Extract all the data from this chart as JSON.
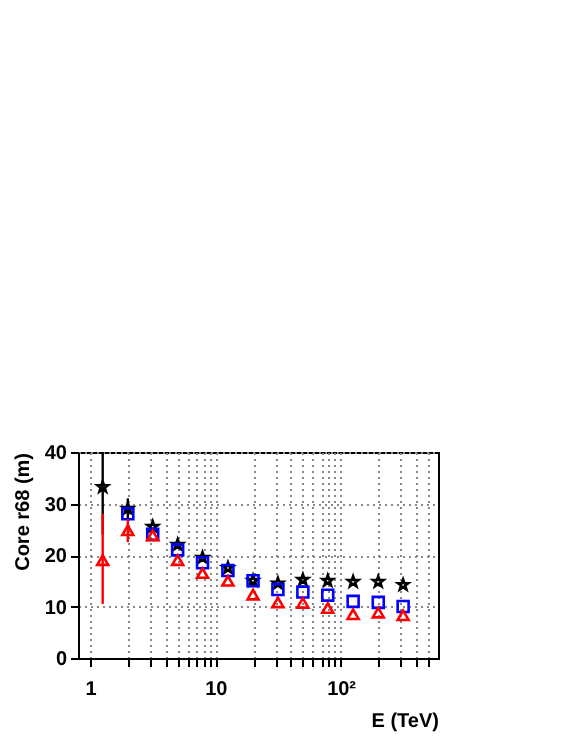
{
  "chart_data": {
    "type": "scatter",
    "xlabel": "E (TeV)",
    "ylabel": "Core r68 (m)",
    "x": [
      1.26,
      2,
      3.16,
      5,
      7.9,
      12.6,
      20,
      31.6,
      50,
      79,
      126,
      200,
      316
    ],
    "series": [
      {
        "color": "#000000",
        "marker": "star",
        "values": [
          33.2,
          29,
          25.5,
          22,
          19.5,
          17.5,
          15,
          14.5,
          15.2,
          15,
          14.8,
          14.8,
          14.2
        ],
        "errors": [
          [
            24,
            40
          ],
          [
            27,
            31
          ],
          null,
          null,
          null,
          null,
          null,
          null,
          null,
          null,
          null,
          null,
          null
        ]
      },
      {
        "color": "#0000ff",
        "marker": "square",
        "values": [
          null,
          28,
          24,
          21,
          18.5,
          17,
          15,
          13.3,
          12.8,
          12.2,
          11,
          10.8,
          10
        ]
      },
      {
        "color": "#ff0000",
        "marker": "triangle",
        "values": [
          19,
          24.8,
          23.8,
          19,
          16.5,
          15,
          12.3,
          10.8,
          10.7,
          9.7,
          8.5,
          8.8,
          8.3
        ],
        "errors": [
          [
            10.5,
            28
          ],
          [
            22.5,
            27
          ],
          null,
          null,
          null,
          null,
          null,
          null,
          null,
          null,
          null,
          null,
          null
        ]
      }
    ],
    "log": "x",
    "xlim": [
      0.8,
      600
    ],
    "ylim": [
      0,
      40
    ],
    "yticks": [
      0,
      10,
      20,
      30,
      40
    ],
    "xticks": [
      1,
      {
        "value": 2,
        "label": null
      },
      {
        "value": 3,
        "label": null
      },
      {
        "value": 4,
        "label": null
      },
      {
        "value": 5,
        "label": null
      },
      {
        "value": 6,
        "label": null
      },
      {
        "value": 7,
        "label": null
      },
      {
        "value": 8,
        "label": null
      },
      {
        "value": 9,
        "label": null
      },
      10,
      {
        "value": 20,
        "label": null
      },
      {
        "value": 30,
        "label": null
      },
      {
        "value": 40,
        "label": null
      },
      {
        "value": 50,
        "label": null
      },
      {
        "value": 60,
        "label": null
      },
      {
        "value": 70,
        "label": null
      },
      {
        "value": 80,
        "label": null
      },
      {
        "value": 90,
        "label": null
      },
      {
        "value": 100,
        "label": "10²"
      },
      {
        "value": 200,
        "label": null
      },
      {
        "value": 300,
        "label": null
      },
      {
        "value": 400,
        "label": null
      },
      {
        "value": 500,
        "label": null
      }
    ],
    "grid": true
  }
}
